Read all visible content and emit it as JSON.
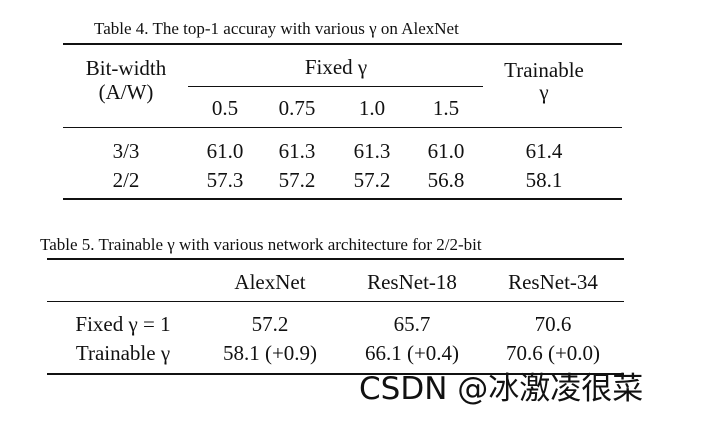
{
  "table4": {
    "caption": "Table 4. The top-1 accuray with various γ on AlexNet",
    "header": {
      "bitwidth_line1": "Bit-width",
      "bitwidth_line2": "(A/W)",
      "fixed_group": "Fixed γ",
      "fixed_values": [
        "0.5",
        "0.75",
        "1.0",
        "1.5"
      ],
      "trainable_line1": "Trainable",
      "trainable_line2": "γ"
    },
    "rows": [
      {
        "bitwidth": "3/3",
        "fixed": [
          "61.0",
          "61.3",
          "61.3",
          "61.0"
        ],
        "trainable": "61.4"
      },
      {
        "bitwidth": "2/2",
        "fixed": [
          "57.3",
          "57.2",
          "57.2",
          "56.8"
        ],
        "trainable": "58.1"
      }
    ]
  },
  "table5": {
    "caption": "Table 5. Trainable γ with various network architecture for 2/2-bit",
    "columns": [
      "AlexNet",
      "ResNet-18",
      "ResNet-34"
    ],
    "rows": [
      {
        "label": "Fixed γ = 1",
        "values": [
          "57.2",
          "65.7",
          "70.6"
        ]
      },
      {
        "label": "Trainable γ",
        "values": [
          "58.1 (+0.9)",
          "66.1 (+0.4)",
          "70.6 (+0.0)"
        ]
      }
    ]
  },
  "watermark": "CSDN @冰激凌很菜"
}
